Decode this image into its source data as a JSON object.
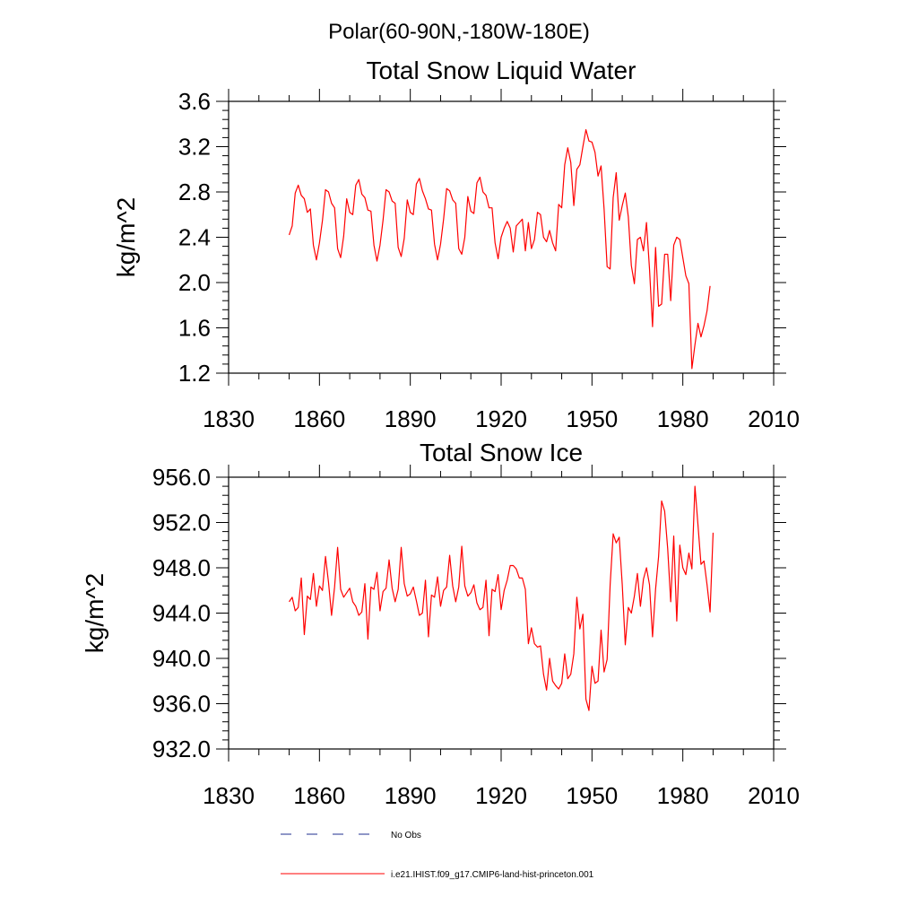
{
  "page_title": "Polar(60-90N,-180W-180E)",
  "legend": [
    {
      "label": "No Obs",
      "color": "#1f2f8f",
      "dash": true
    },
    {
      "label": "i.e21.IHIST.f09_g17.CMIP6-land-hist-princeton.001",
      "color": "#ff0000",
      "dash": false
    }
  ],
  "chart_data": [
    {
      "type": "line",
      "title": "Total Snow Liquid Water",
      "xlabel": "",
      "ylabel": "kg/m^2",
      "xlim": [
        1830,
        2010
      ],
      "ylim": [
        1.2,
        3.6
      ],
      "x_ticks": [
        "1830",
        "1860",
        "1890",
        "1920",
        "1950",
        "1980",
        "2010"
      ],
      "y_ticks": [
        "1.2",
        "1.6",
        "2.0",
        "2.4",
        "2.8",
        "3.2",
        "3.6"
      ],
      "x_start": 1850,
      "x_step": 1,
      "series": [
        {
          "name": "i.e21.IHIST.f09_g17.CMIP6-land-hist-princeton.001",
          "color": "#ff0000",
          "values": [
            2.42,
            2.5,
            2.79,
            2.86,
            2.77,
            2.74,
            2.62,
            2.65,
            2.33,
            2.2,
            2.35,
            2.55,
            2.82,
            2.8,
            2.7,
            2.66,
            2.3,
            2.22,
            2.41,
            2.74,
            2.62,
            2.6,
            2.86,
            2.91,
            2.78,
            2.75,
            2.64,
            2.63,
            2.33,
            2.19,
            2.33,
            2.55,
            2.82,
            2.8,
            2.72,
            2.7,
            2.31,
            2.23,
            2.39,
            2.73,
            2.62,
            2.6,
            2.87,
            2.92,
            2.81,
            2.74,
            2.65,
            2.64,
            2.34,
            2.2,
            2.34,
            2.56,
            2.83,
            2.81,
            2.73,
            2.7,
            2.3,
            2.25,
            2.4,
            2.76,
            2.63,
            2.61,
            2.88,
            2.93,
            2.8,
            2.77,
            2.66,
            2.66,
            2.35,
            2.21,
            2.4,
            2.48,
            2.54,
            2.48,
            2.27,
            2.5,
            2.53,
            2.56,
            2.28,
            2.53,
            2.3,
            2.38,
            2.62,
            2.6,
            2.4,
            2.36,
            2.46,
            2.35,
            2.28,
            2.69,
            2.66,
            3.04,
            3.19,
            3.06,
            2.68,
            3.0,
            3.04,
            3.2,
            3.35,
            3.25,
            3.24,
            3.15,
            2.94,
            3.03,
            2.65,
            2.14,
            2.12,
            2.75,
            2.97,
            2.55,
            2.68,
            2.79,
            2.58,
            2.15,
            1.99,
            2.38,
            2.4,
            2.28,
            2.53,
            2.12,
            1.61,
            2.31,
            1.79,
            1.81,
            2.25,
            2.25,
            1.84,
            2.33,
            2.4,
            2.38,
            2.22,
            2.06,
            1.99,
            1.24,
            1.45,
            1.64,
            1.52,
            1.62,
            1.75,
            1.97
          ]
        }
      ]
    },
    {
      "type": "line",
      "title": "Total Snow Ice",
      "xlabel": "",
      "ylabel": "kg/m^2",
      "xlim": [
        1830,
        2010
      ],
      "ylim": [
        932.0,
        956.0
      ],
      "x_ticks": [
        "1830",
        "1860",
        "1890",
        "1920",
        "1950",
        "1980",
        "2010"
      ],
      "y_ticks": [
        "932.0",
        "936.0",
        "940.0",
        "944.0",
        "948.0",
        "952.0",
        "956.0"
      ],
      "x_start": 1850,
      "x_step": 1,
      "series": [
        {
          "name": "i.e21.IHIST.f09_g17.CMIP6-land-hist-princeton.001",
          "color": "#ff0000",
          "values": [
            945.0,
            945.4,
            944.2,
            944.5,
            947.1,
            942.1,
            945.5,
            945.2,
            947.5,
            944.6,
            946.4,
            946.0,
            949.0,
            946.7,
            943.8,
            946.3,
            949.8,
            946.1,
            945.4,
            945.8,
            946.2,
            945.0,
            944.6,
            943.8,
            944.1,
            946.6,
            941.7,
            946.3,
            946.1,
            947.6,
            944.2,
            945.9,
            946.2,
            948.7,
            946.2,
            945.0,
            946.1,
            949.8,
            946.6,
            945.5,
            945.7,
            946.3,
            945.1,
            943.8,
            944.0,
            946.9,
            941.9,
            945.6,
            945.4,
            947.2,
            944.6,
            946.0,
            946.3,
            949.1,
            946.4,
            945.0,
            946.3,
            949.9,
            946.4,
            945.5,
            945.8,
            946.5,
            944.9,
            944.3,
            944.5,
            946.9,
            942.0,
            946.1,
            945.9,
            947.4,
            944.3,
            946.0,
            946.9,
            948.2,
            948.2,
            947.9,
            947.1,
            947.1,
            946.1,
            941.3,
            942.7,
            941.3,
            941.0,
            941.1,
            938.6,
            937.2,
            940.0,
            938.0,
            937.6,
            937.3,
            937.8,
            940.4,
            938.2,
            938.6,
            940.4,
            945.4,
            942.6,
            943.9,
            936.4,
            935.4,
            939.3,
            937.8,
            938.0,
            942.5,
            938.8,
            939.9,
            946.5,
            951.0,
            950.2,
            950.7,
            946.5,
            941.2,
            944.5,
            944.0,
            945.5,
            947.5,
            944.6,
            947.0,
            948.0,
            946.5,
            941.9,
            946.1,
            949.0,
            953.9,
            953.0,
            949.7,
            945.0,
            950.8,
            943.3,
            950.0,
            948.0,
            947.4,
            949.3,
            947.9,
            955.2,
            951.8,
            948.3,
            948.6,
            946.5,
            944.1,
            951.1
          ]
        }
      ]
    }
  ]
}
